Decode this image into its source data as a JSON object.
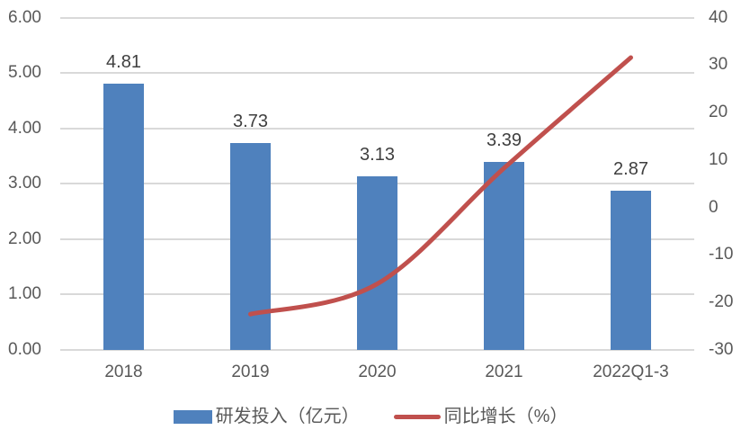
{
  "chart_data": {
    "type": "combo",
    "categories": [
      "2018",
      "2019",
      "2020",
      "2021",
      "2022Q1-3"
    ],
    "series": [
      {
        "name": "研发投入（亿元）",
        "type": "bar",
        "axis": "left",
        "values": [
          4.81,
          3.73,
          3.13,
          3.39,
          2.87
        ],
        "data_labels": [
          "4.81",
          "3.73",
          "3.13",
          "3.39",
          "2.87"
        ],
        "color": "#4F81BD"
      },
      {
        "name": "同比增长（%）",
        "type": "line",
        "axis": "right",
        "smooth": true,
        "values": [
          null,
          -22.45,
          -16.09,
          8.31,
          31.6
        ],
        "color": "#C0504D"
      }
    ],
    "y_left": {
      "min": 0,
      "max": 6,
      "step": 1,
      "tick_labels": [
        "6.00",
        "5.00",
        "4.00",
        "3.00",
        "2.00",
        "1.00",
        "0.00"
      ]
    },
    "y_right": {
      "min": -30,
      "max": 40,
      "step": 10,
      "tick_labels": [
        "40",
        "30",
        "20",
        "10",
        "0",
        "-10",
        "-20",
        "-30"
      ]
    },
    "legend": {
      "position": "bottom",
      "bar_label": "研发投入（亿元）",
      "line_label": "同比增长（%）"
    },
    "grid": {
      "visible": true,
      "color": "#D9D9D9"
    },
    "colors": {
      "bar": "#4F81BD",
      "line": "#C0504D",
      "axis_text": "#595959",
      "data_label_text": "#3F3F3F",
      "background": "#FFFFFF"
    },
    "title": ""
  }
}
